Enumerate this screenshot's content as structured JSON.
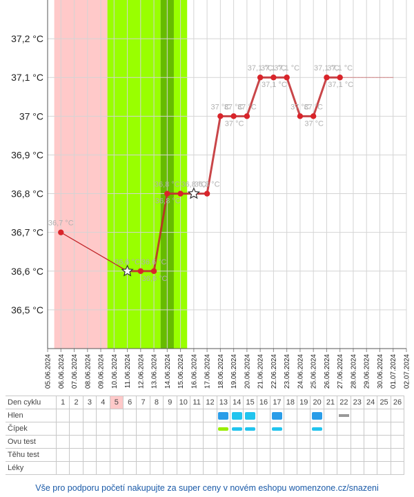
{
  "chart_data": {
    "type": "line",
    "title": "",
    "xlabel": "",
    "ylabel": "",
    "ylim": [
      36.4,
      37.3
    ],
    "y_ticks": [
      36.5,
      36.6,
      36.7,
      36.8,
      36.9,
      37.0,
      37.1,
      37.2
    ],
    "y_tick_labels": [
      "36,5 °C",
      "36,6 °C",
      "36,7 °C",
      "36,8 °C",
      "36,9 °C",
      "37 °C",
      "37,1 °C",
      "37,2 °C"
    ],
    "x_dates": [
      "05.06.2024",
      "06.06.2024",
      "07.06.2024",
      "08.06.2024",
      "09.06.2024",
      "10.06.2024",
      "11.06.2024",
      "12.06.2024",
      "13.06.2024",
      "14.06.2024",
      "15.06.2024",
      "16.06.2024",
      "17.06.2024",
      "18.06.2024",
      "19.06.2024",
      "20.06.2024",
      "21.06.2024",
      "22.06.2024",
      "23.06.2024",
      "24.06.2024",
      "25.06.2024",
      "26.06.2024",
      "27.06.2024",
      "28.06.2024",
      "29.06.2024",
      "30.06.2024",
      "01.07.2024",
      "02.07.2024"
    ],
    "grid": true,
    "series": [
      {
        "name": "",
        "color": "#c0262a",
        "points": [
          {
            "x": "06.06.2024",
            "y": 36.7,
            "label": "36,7 °C"
          },
          {
            "x": "11.06.2024",
            "y": 36.6,
            "label": "36,6 °C",
            "marker": "star"
          },
          {
            "x": "12.06.2024",
            "y": 36.6,
            "label": ""
          },
          {
            "x": "13.06.2024",
            "y": 36.6,
            "label": "36,6 °C"
          },
          {
            "x": "14.06.2024",
            "y": 36.8,
            "label": "36,8 °C"
          },
          {
            "x": "15.06.2024",
            "y": 36.8,
            "label": ""
          },
          {
            "x": "16.06.2024",
            "y": 36.8,
            "label": "36,8 °C",
            "marker": "star"
          },
          {
            "x": "17.06.2024",
            "y": 36.8,
            "label": "36,8 °C"
          },
          {
            "x": "18.06.2024",
            "y": 37.0,
            "label": "37 °C"
          },
          {
            "x": "19.06.2024",
            "y": 37.0,
            "label": "37 °C"
          },
          {
            "x": "20.06.2024",
            "y": 37.0,
            "label": "37 °C"
          },
          {
            "x": "21.06.2024",
            "y": 37.1,
            "label": "37,1 °C"
          },
          {
            "x": "22.06.2024",
            "y": 37.1,
            "label": "37,1 °C"
          },
          {
            "x": "23.06.2024",
            "y": 37.1,
            "label": "37,1 °C"
          },
          {
            "x": "24.06.2024",
            "y": 37.0,
            "label": "37 °C"
          },
          {
            "x": "25.06.2024",
            "y": 37.0,
            "label": "37 °C"
          },
          {
            "x": "26.06.2024",
            "y": 37.1,
            "label": "37,1 °C"
          },
          {
            "x": "27.06.2024",
            "y": 37.1,
            "label": "37,1 °C"
          }
        ],
        "extension": {
          "from": "27.06.2024",
          "to": "01.07.2024",
          "y": 37.1
        }
      }
    ],
    "overlapping_labels": [
      {
        "x": "13.06.2024",
        "y": 36.6,
        "label": "36,6 °C"
      },
      {
        "x": "14.06.2024",
        "y": 36.8,
        "label": "36,8 °C"
      },
      {
        "x": "19.06.2024",
        "y": 37.0,
        "label": "37 °C"
      },
      {
        "x": "22.06.2024",
        "y": 37.1,
        "label": "37,1 °C"
      },
      {
        "x": "25.06.2024",
        "y": 37.0,
        "label": "37 °C"
      },
      {
        "x": "27.06.2024",
        "y": 37.1,
        "label": "37,1 °C"
      }
    ],
    "bands": [
      {
        "from": "05.06.2024",
        "to": "09.06.2024",
        "color": "#ffc9c9"
      },
      {
        "from": "09.06.2024",
        "to": "13.06.2024",
        "color": "#99ff00"
      },
      {
        "from": "13.06.2024",
        "to": "14.06.2024",
        "color": "#66bb00"
      },
      {
        "from": "14.06.2024",
        "to": "15.06.2024",
        "color": "#99ff00"
      }
    ]
  },
  "table": {
    "days": [
      "1",
      "2",
      "3",
      "4",
      "5",
      "6",
      "7",
      "8",
      "9",
      "10",
      "11",
      "12",
      "13",
      "14",
      "15",
      "16",
      "17",
      "18",
      "19",
      "20",
      "21",
      "22",
      "23",
      "24",
      "25",
      "26"
    ],
    "highlight_day_index": 4,
    "rows": [
      {
        "label": "Den cyklu"
      },
      {
        "label": "Hlen",
        "marks": [
          {
            "day": 13,
            "color": "#2a9de8",
            "size": "large"
          },
          {
            "day": 14,
            "color": "#22c4ee",
            "size": "large"
          },
          {
            "day": 15,
            "color": "#22c4ee",
            "size": "large"
          },
          {
            "day": 17,
            "color": "#2a9de8",
            "size": "large"
          },
          {
            "day": 20,
            "color": "#2a9de8",
            "size": "large"
          },
          {
            "day": 22,
            "color": "#999999",
            "size": "line"
          }
        ]
      },
      {
        "label": "Čípek",
        "marks": [
          {
            "day": 13,
            "color": "#99ee00",
            "size": "small"
          },
          {
            "day": 14,
            "color": "#22c4ee",
            "size": "small"
          },
          {
            "day": 15,
            "color": "#22c4ee",
            "size": "small"
          },
          {
            "day": 17,
            "color": "#22c4ee",
            "size": "small"
          },
          {
            "day": 20,
            "color": "#22c4ee",
            "size": "small"
          }
        ]
      },
      {
        "label": "Ovu test"
      },
      {
        "label": "Těhu test"
      },
      {
        "label": "Léky"
      }
    ]
  },
  "footer": "Vše pro podporu početí nakupujte za super ceny v novém eshopu womenzone.cz/snazeni"
}
